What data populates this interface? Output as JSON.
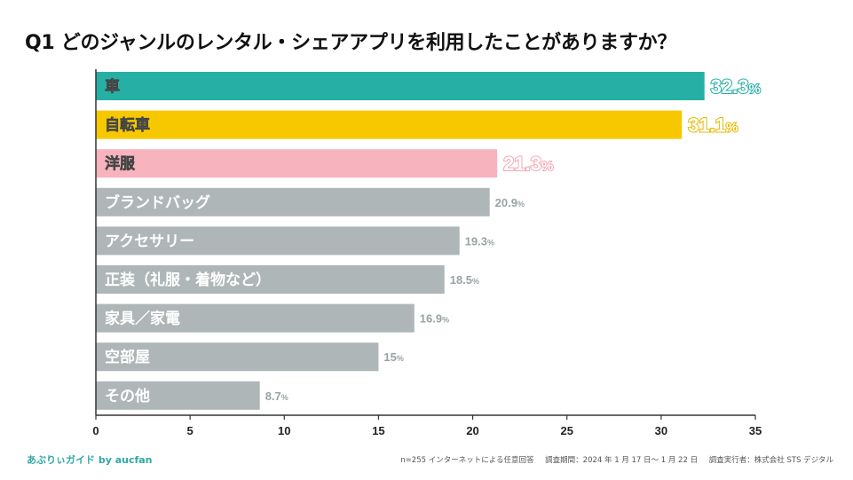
{
  "chart_data": {
    "type": "bar",
    "orientation": "horizontal",
    "title": "Q1 どのジャンルのレンタル・シェアアプリを利用したことがありますか？",
    "categories": [
      "車",
      "自転車",
      "洋服",
      "ブランドバッグ",
      "アクセサリー",
      "正装（礼服・着物など）",
      "家具／家電",
      "空部屋",
      "その他"
    ],
    "values": [
      32.3,
      31.1,
      21.3,
      20.9,
      19.3,
      18.5,
      16.9,
      15,
      8.7
    ],
    "value_labels": [
      "32.3",
      "31.1",
      "21.3",
      "20.9",
      "19.3",
      "18.5",
      "16.9",
      "15",
      "8.7"
    ],
    "unit": "%",
    "bar_colors": [
      "#26b0a5",
      "#f7c800",
      "#f7b4bf",
      "#afb6b7",
      "#afb6b7",
      "#afb6b7",
      "#afb6b7",
      "#afb6b7",
      "#afb6b7"
    ],
    "label_colors": [
      "#26b0a5",
      "#e8b800",
      "#f4a9b6",
      "#9aa3a5",
      "#9aa3a5",
      "#9aa3a5",
      "#9aa3a5",
      "#9aa3a5",
      "#9aa3a5"
    ],
    "xlim": [
      0,
      35
    ],
    "xticks": [
      0,
      5,
      10,
      15,
      20,
      25,
      30,
      35
    ],
    "xlabel": "",
    "ylabel": "",
    "grid": false
  },
  "footer": {
    "brand": "あぶりぃガイド by aucfan",
    "survey": "n=255 インターネットによる任意回答",
    "period": "調査期間：2024 年 1 月 17 日〜 1 月 22 日",
    "conductor": "調査実行者：株式会社 STS デジタル"
  }
}
